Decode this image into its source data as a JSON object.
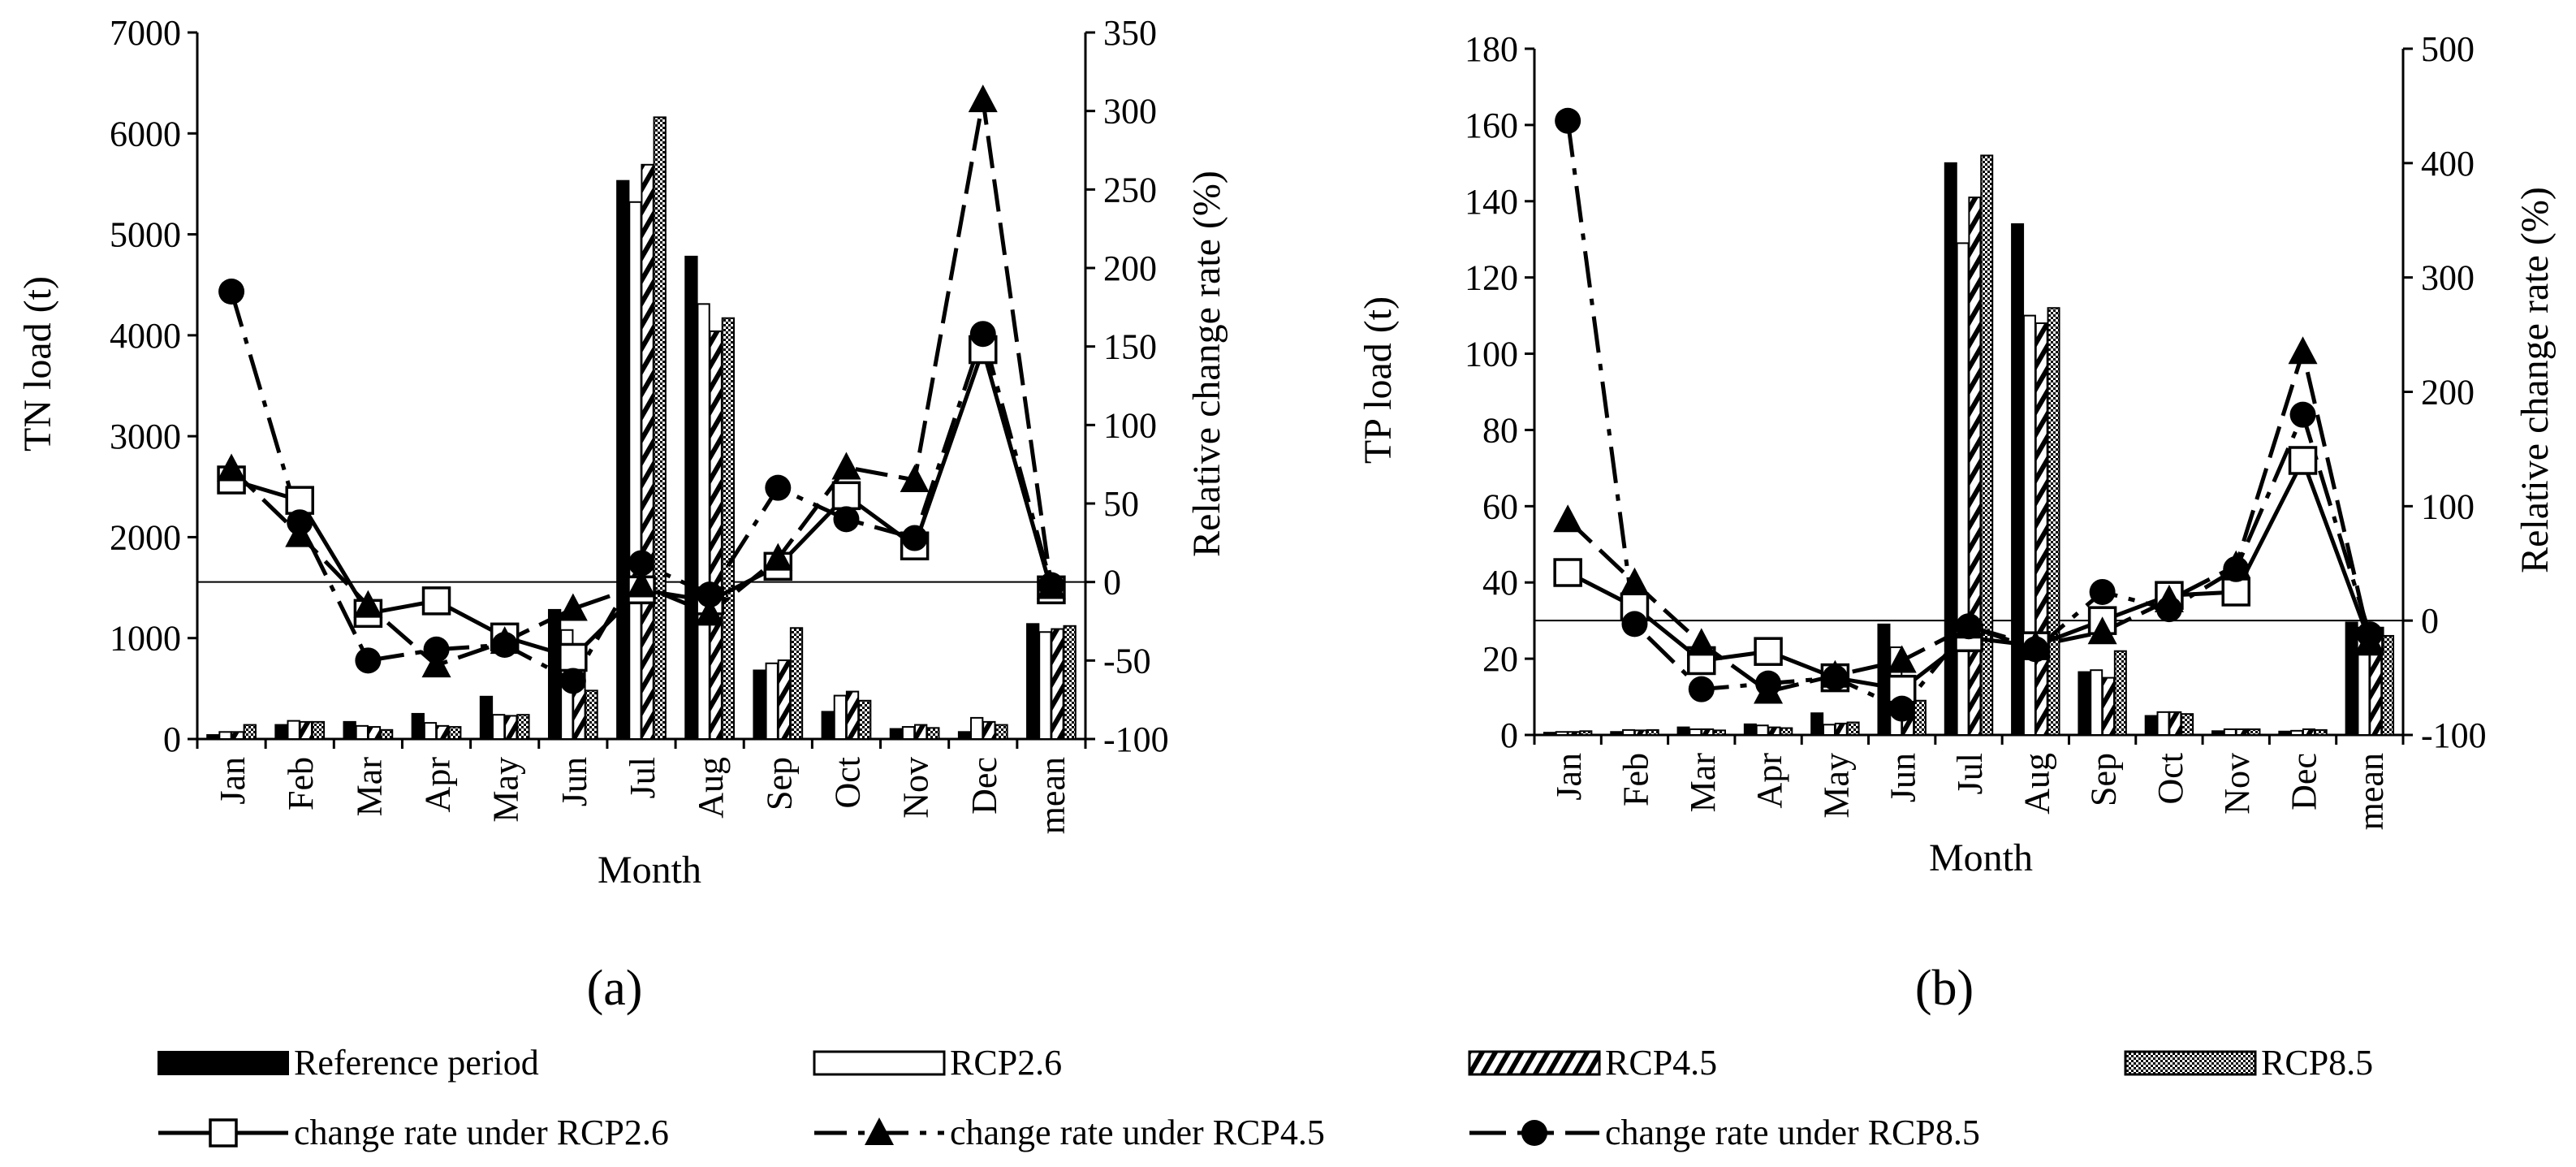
{
  "chart_data": [
    {
      "type": "bar",
      "panel_label": "(a)",
      "categories": [
        "Jan",
        "Feb",
        "Mar",
        "Apr",
        "May",
        "Jun",
        "Jul",
        "Aug",
        "Sep",
        "Oct",
        "Nov",
        "Dec",
        "mean"
      ],
      "xlabel": "Month",
      "ylabel": "TN load (t)",
      "ylim": [
        0,
        7000
      ],
      "yticks": [
        "0",
        "1000",
        "2000",
        "3000",
        "4000",
        "5000",
        "6000",
        "7000"
      ],
      "y2label": "Relative change rate (%)",
      "y2lim": [
        -100,
        350
      ],
      "y2ticks": [
        "-100",
        "-50",
        "0",
        "50",
        "100",
        "150",
        "200",
        "250",
        "300",
        "350"
      ],
      "series": [
        {
          "name": "Reference period",
          "values": [
            40,
            140,
            170,
            250,
            420,
            1280,
            5530,
            4780,
            680,
            270,
            100,
            70,
            1140
          ]
        },
        {
          "name": "RCP2.6",
          "values": [
            70,
            180,
            130,
            160,
            240,
            1080,
            5320,
            4310,
            750,
            430,
            120,
            210,
            1060
          ]
        },
        {
          "name": "RCP4.5",
          "values": [
            70,
            170,
            120,
            130,
            230,
            830,
            5690,
            4040,
            780,
            470,
            140,
            170,
            1090
          ]
        },
        {
          "name": "RCP8.5",
          "values": [
            140,
            170,
            90,
            120,
            240,
            480,
            6160,
            4170,
            1100,
            380,
            110,
            140,
            1120
          ]
        }
      ],
      "rate_series": [
        {
          "name": "change rate under RCP2.6",
          "values": [
            65,
            52,
            -20,
            -12,
            -35,
            -48,
            -5,
            -12,
            10,
            55,
            23,
            148,
            -5
          ]
        },
        {
          "name": "change rate under RCP4.5",
          "values": [
            72,
            30,
            -15,
            -53,
            -38,
            -17,
            -2,
            -20,
            15,
            73,
            65,
            307,
            -3
          ]
        },
        {
          "name": "change rate under RCP8.5",
          "values": [
            185,
            38,
            -50,
            -43,
            -40,
            -63,
            12,
            -8,
            60,
            40,
            28,
            158,
            -2
          ]
        }
      ]
    },
    {
      "type": "bar",
      "panel_label": "(b)",
      "categories": [
        "Jan",
        "Feb",
        "Mar",
        "Apr",
        "May",
        "Jun",
        "Jul",
        "Aug",
        "Sep",
        "Oct",
        "Nov",
        "Dec",
        "mean"
      ],
      "xlabel": "Month",
      "ylabel": "TP load (t)",
      "ylim": [
        0,
        180
      ],
      "yticks": [
        "0",
        "20",
        "40",
        "60",
        "80",
        "100",
        "120",
        "140",
        "160",
        "180"
      ],
      "y2label": "Relative change rate (%)",
      "y2lim": [
        -100,
        500
      ],
      "y2ticks": [
        "-100",
        "0",
        "100",
        "200",
        "300",
        "400",
        "500"
      ],
      "series": [
        {
          "name": "Reference period",
          "values": [
            0.6,
            0.8,
            2.0,
            2.8,
            5.7,
            29,
            150,
            134,
            16.5,
            5.0,
            1.0,
            0.9,
            29.5
          ]
        },
        {
          "name": "RCP2.6",
          "values": [
            0.8,
            1.3,
            1.5,
            2.5,
            2.7,
            23,
            129,
            110,
            17,
            6.0,
            1.5,
            1.1,
            25
          ]
        },
        {
          "name": "RCP4.5",
          "values": [
            0.8,
            1.2,
            1.5,
            2.0,
            3.0,
            15,
            141,
            108,
            15,
            6.0,
            1.5,
            1.5,
            27
          ]
        },
        {
          "name": "RCP8.5",
          "values": [
            1.0,
            1.3,
            1.2,
            1.8,
            3.3,
            9,
            152,
            112,
            22,
            5.5,
            1.5,
            1.3,
            26
          ]
        }
      ],
      "rate_series": [
        {
          "name": "change rate under RCP2.6",
          "values": [
            42,
            12,
            -35,
            -27,
            -50,
            -60,
            -15,
            -22,
            0,
            22,
            25,
            140,
            -18
          ]
        },
        {
          "name": "change rate under RCP4.5",
          "values": [
            88,
            33,
            -20,
            -62,
            -48,
            -35,
            -5,
            -22,
            -10,
            18,
            48,
            235,
            -18
          ]
        },
        {
          "name": "change rate under RCP8.5",
          "values": [
            437,
            -3,
            -60,
            -55,
            -50,
            -77,
            -5,
            -25,
            25,
            10,
            45,
            180,
            -12
          ]
        }
      ]
    }
  ],
  "legend": {
    "bars": [
      "Reference period",
      "RCP2.6",
      "RCP4.5",
      "RCP8.5"
    ],
    "lines": [
      "change rate under RCP2.6",
      "change rate under RCP4.5",
      "change rate under RCP8.5"
    ]
  }
}
